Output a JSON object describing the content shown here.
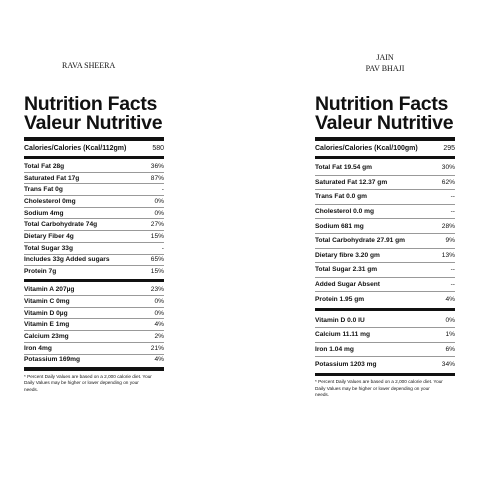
{
  "labels": [
    {
      "title": [
        "RAVA SHEERA"
      ],
      "heading": [
        "Nutrition Facts",
        "Valeur Nutritive"
      ],
      "calories": {
        "label": "Calories/Calories (Kcal/112gm)",
        "value": "580"
      },
      "nutrients": [
        [
          "Total Fat 28g",
          "36%"
        ],
        [
          "Saturated Fat 17g",
          "87%"
        ],
        [
          "Trans Fat 0g",
          "-"
        ],
        [
          "Cholesterol 0mg",
          "0%"
        ],
        [
          "Sodium 4mg",
          "0%"
        ],
        [
          "Total Carbohydrate 74g",
          "27%"
        ],
        [
          "Dietary Fiber 4g",
          "15%"
        ],
        [
          "Total Sugar 33g",
          "-"
        ],
        [
          "Includes 33g Added sugars",
          "65%"
        ],
        [
          "Protein 7g",
          "15%"
        ]
      ],
      "vitamins": [
        [
          "Vitamin A 207µg",
          "23%"
        ],
        [
          "Vitamin C 0mg",
          "0%"
        ],
        [
          "Vitamin D 0µg",
          "0%"
        ],
        [
          "Vitamin E 1mg",
          "4%"
        ],
        [
          "Calcium 23mg",
          "2%"
        ],
        [
          "Iron 4mg",
          "21%"
        ],
        [
          "Potassium 169mg",
          "4%"
        ]
      ],
      "footnote": [
        "* Percent Daily Values are based on a 2,000 calorie diet. Your",
        "Daily Values may be higher or lower depending on your",
        "needs."
      ]
    },
    {
      "title": [
        "JAIN",
        "PAV BHAJI"
      ],
      "heading": [
        "Nutrition Facts",
        "Valeur Nutritive"
      ],
      "calories": {
        "label": "Calories/Calories (Kcal/100gm)",
        "value": "295"
      },
      "nutrients": [
        [
          "Total Fat 19.54 gm",
          "30%"
        ],
        [
          "Saturated Fat 12.37 gm",
          "62%"
        ],
        [
          "Trans Fat 0.0 gm",
          "--"
        ],
        [
          "Cholesterol 0.0 mg",
          "--"
        ],
        [
          "Sodium 681 mg",
          "28%"
        ],
        [
          "Total Carbohydrate 27.91 gm",
          "9%"
        ],
        [
          "Dietary fibre 3.20 gm",
          "13%"
        ],
        [
          "Total Sugar 2.31 gm",
          "--"
        ],
        [
          "Added Sugar Absent",
          "--"
        ],
        [
          "Protein 1.95 gm",
          "4%"
        ]
      ],
      "vitamins": [
        [
          "Vitamin D 0.0 IU",
          "0%"
        ],
        [
          "Calcium 11.11 mg",
          "1%"
        ],
        [
          "Iron 1.04 mg",
          "6%"
        ],
        [
          "Potassium 1203 mg",
          "34%"
        ]
      ],
      "footnote": [
        "* Percent Daily Values are based on a 2,000 calorie diet. Your",
        "Daily Values may be higher or lower depending on your",
        "needs."
      ]
    }
  ]
}
